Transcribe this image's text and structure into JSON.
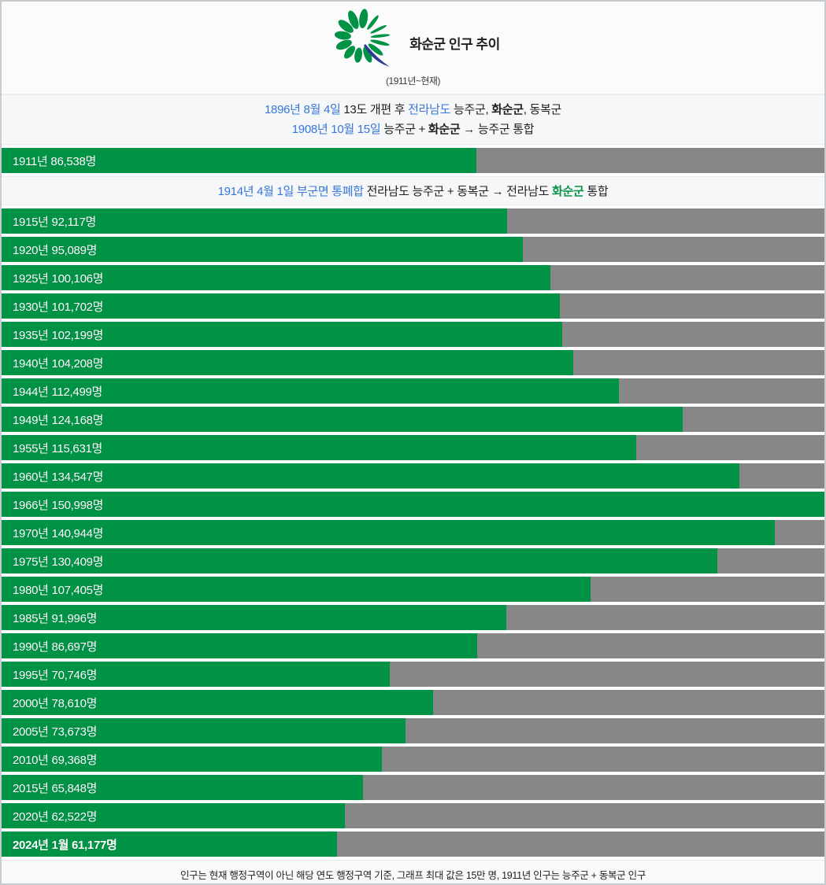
{
  "header": {
    "title": "화순군 인구 추이",
    "subtitle": "(1911년~현재)",
    "logo": {
      "icon_name": "hwasun-county-emblem",
      "petal_color": "#009245",
      "swoosh_color": "#2b3c90"
    }
  },
  "notes": {
    "note1_line1": [
      {
        "text": "1896년 8월 4일",
        "style": "link"
      },
      {
        "text": " 13도 개편 후 ",
        "style": "plain"
      },
      {
        "text": "전라남도",
        "style": "link"
      },
      {
        "text": " 능주군, ",
        "style": "plain"
      },
      {
        "text": "화순군",
        "style": "bold"
      },
      {
        "text": ", 동복군",
        "style": "plain"
      }
    ],
    "note1_line2": [
      {
        "text": "1908년 10월 15일",
        "style": "link"
      },
      {
        "text": " 능주군 + ",
        "style": "plain"
      },
      {
        "text": "화순군",
        "style": "bold"
      },
      {
        "text": " → 능주군 통합",
        "style": "plain"
      }
    ],
    "note_1914": [
      {
        "text": "1914년 4월 1일 부군면 통폐합",
        "style": "link"
      },
      {
        "text": " 전라남도 능주군 + 동복군 → 전라남도 ",
        "style": "plain"
      },
      {
        "text": "화순군",
        "style": "greenbold"
      },
      {
        "text": " 통합",
        "style": "plain"
      }
    ]
  },
  "chart_data": {
    "type": "bar",
    "title": "화순군 인구 추이 (1911년~현재)",
    "orientation": "horizontal",
    "max_value": 150000,
    "unit": "명",
    "bar_color": "#009245",
    "track_color": "#878787",
    "bars": [
      {
        "year": "1911",
        "value": 86538,
        "label": "1911년 86,538명",
        "bold": false
      },
      {
        "year": "1915",
        "value": 92117,
        "label": "1915년 92,117명",
        "bold": false
      },
      {
        "year": "1920",
        "value": 95089,
        "label": "1920년 95,089명",
        "bold": false
      },
      {
        "year": "1925",
        "value": 100106,
        "label": "1925년 100,106명",
        "bold": false
      },
      {
        "year": "1930",
        "value": 101702,
        "label": "1930년 101,702명",
        "bold": false
      },
      {
        "year": "1935",
        "value": 102199,
        "label": "1935년 102,199명",
        "bold": false
      },
      {
        "year": "1940",
        "value": 104208,
        "label": "1940년 104,208명",
        "bold": false
      },
      {
        "year": "1944",
        "value": 112499,
        "label": "1944년 112,499명",
        "bold": false
      },
      {
        "year": "1949",
        "value": 124168,
        "label": "1949년 124,168명",
        "bold": false
      },
      {
        "year": "1955",
        "value": 115631,
        "label": "1955년 115,631명",
        "bold": false
      },
      {
        "year": "1960",
        "value": 134547,
        "label": "1960년 134,547명",
        "bold": false
      },
      {
        "year": "1966",
        "value": 150998,
        "label": "1966년 150,998명",
        "bold": false
      },
      {
        "year": "1970",
        "value": 140944,
        "label": "1970년 140,944명",
        "bold": false
      },
      {
        "year": "1975",
        "value": 130409,
        "label": "1975년 130,409명",
        "bold": false
      },
      {
        "year": "1980",
        "value": 107405,
        "label": "1980년 107,405명",
        "bold": false
      },
      {
        "year": "1985",
        "value": 91996,
        "label": "1985년 91,996명",
        "bold": false
      },
      {
        "year": "1990",
        "value": 86697,
        "label": "1990년 86,697명",
        "bold": false
      },
      {
        "year": "1995",
        "value": 70746,
        "label": "1995년 70,746명",
        "bold": false
      },
      {
        "year": "2000",
        "value": 78610,
        "label": "2000년 78,610명",
        "bold": false
      },
      {
        "year": "2005",
        "value": 73673,
        "label": "2005년 73,673명",
        "bold": false
      },
      {
        "year": "2010",
        "value": 69368,
        "label": "2010년 69,368명",
        "bold": false
      },
      {
        "year": "2015",
        "value": 65848,
        "label": "2015년 65,848명",
        "bold": false
      },
      {
        "year": "2020",
        "value": 62522,
        "label": "2020년 62,522명",
        "bold": false
      },
      {
        "year": "2024-01",
        "value": 61177,
        "label": "2024년 1월 61,177명",
        "bold": true
      }
    ]
  },
  "footer": {
    "text": "인구는 현재 행정구역이 아닌 해당 연도 행정구역 기준, 그래프 최대 값은 15만 명, 1911년 인구는 능주군 + 동복군 인구"
  }
}
